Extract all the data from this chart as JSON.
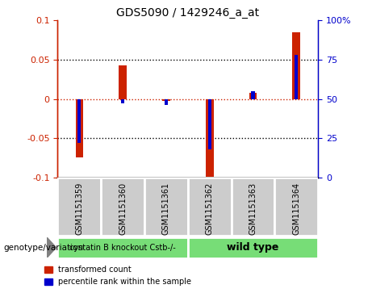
{
  "title": "GDS5090 / 1429246_a_at",
  "categories": [
    "GSM1151359",
    "GSM1151360",
    "GSM1151361",
    "GSM1151362",
    "GSM1151363",
    "GSM1151364"
  ],
  "red_values": [
    -0.075,
    0.043,
    -0.003,
    -0.099,
    0.008,
    0.085
  ],
  "blue_values": [
    22,
    47,
    46,
    18,
    55,
    78
  ],
  "ylim_left": [
    -0.1,
    0.1
  ],
  "ylim_right": [
    0,
    100
  ],
  "yticks_left": [
    -0.1,
    -0.05,
    0,
    0.05,
    0.1
  ],
  "ytick_labels_left": [
    "-0.1",
    "-0.05",
    "0",
    "0.05",
    "0.1"
  ],
  "yticks_right": [
    0,
    25,
    50,
    75,
    100
  ],
  "ytick_labels_right": [
    "0",
    "25",
    "50",
    "75",
    "100%"
  ],
  "group1_label": "cystatin B knockout Cstb-/-",
  "group2_label": "wild type",
  "group1_indices": [
    0,
    1,
    2
  ],
  "group2_indices": [
    3,
    4,
    5
  ],
  "group1_color": "#77dd77",
  "group2_color": "#77dd77",
  "bar_width": 0.18,
  "blue_bar_width": 0.08,
  "red_color": "#cc2200",
  "blue_color": "#0000cc",
  "bg_plot": "#ffffff",
  "bg_labels": "#cccccc",
  "legend_red": "transformed count",
  "legend_blue": "percentile rank within the sample",
  "genotype_label": "genotype/variation",
  "dotted_lines": [
    -0.05,
    0,
    0.05
  ],
  "zero_line_color": "#cc2200"
}
